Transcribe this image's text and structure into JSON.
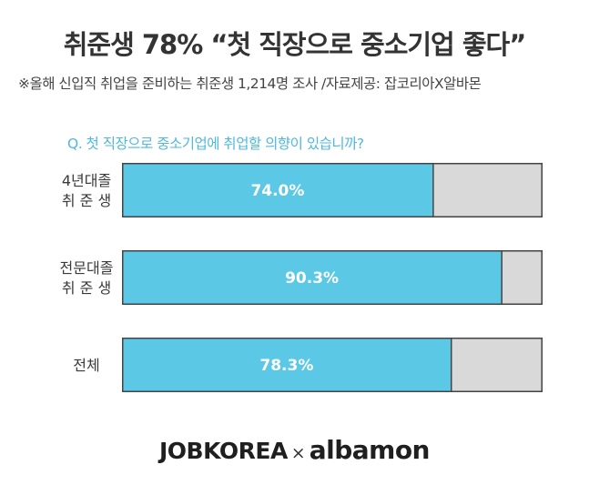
{
  "header": {
    "title": "취준생 78% “첫 직장으로 중소기업 좋다”",
    "subtitle": "※올해 신입직 취업을 준비하는 취준생 1,214명 조사 /자료제공: 잡코리아X알바몬"
  },
  "chart_data": {
    "type": "bar",
    "orientation": "horizontal",
    "stacked": true,
    "title": "Q. 첫 직장으로 중소기업에 취업할 의향이 있습니까?",
    "categories": [
      [
        "4년대졸",
        "취 준 생"
      ],
      [
        "전문대졸",
        "취 준 생"
      ],
      [
        "전체"
      ]
    ],
    "values": [
      74.0,
      90.3,
      78.3
    ],
    "value_labels": [
      "74.0%",
      "90.3%",
      "78.3%"
    ],
    "xlim": [
      0,
      100
    ],
    "grid": false,
    "colors": {
      "value": "#5bc8e6",
      "remainder": "#d9d9d9",
      "border": "#444444"
    }
  },
  "footer": {
    "brand1": "JOBKOREA",
    "separator": "×",
    "brand2": "albamon"
  }
}
